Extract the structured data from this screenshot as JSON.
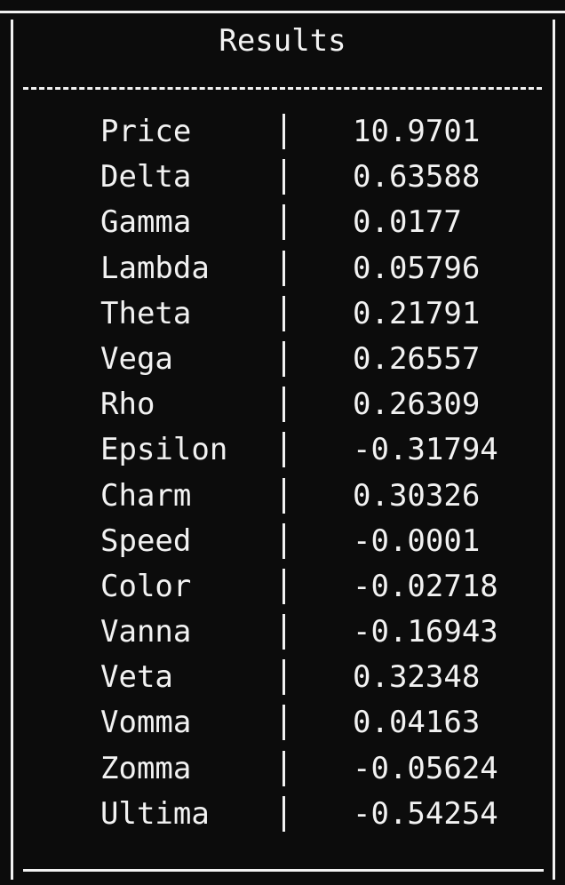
{
  "table": {
    "title": "Results",
    "rows": [
      {
        "label": "Price",
        "value": "10.9701"
      },
      {
        "label": "Delta",
        "value": "0.63588"
      },
      {
        "label": "Gamma",
        "value": "0.0177"
      },
      {
        "label": "Lambda",
        "value": "0.05796"
      },
      {
        "label": "Theta",
        "value": "0.21791"
      },
      {
        "label": "Vega",
        "value": "0.26557"
      },
      {
        "label": "Rho",
        "value": "0.26309"
      },
      {
        "label": "Epsilon",
        "value": "-0.31794"
      },
      {
        "label": "Charm",
        "value": "0.30326"
      },
      {
        "label": "Speed",
        "value": "-0.0001"
      },
      {
        "label": "Color",
        "value": "-0.02718"
      },
      {
        "label": "Vanna",
        "value": "-0.16943"
      },
      {
        "label": "Veta",
        "value": "0.32348"
      },
      {
        "label": "Vomma",
        "value": "0.04163"
      },
      {
        "label": "Zomma",
        "value": "-0.05624"
      },
      {
        "label": "Ultima",
        "value": "-0.54254"
      }
    ]
  },
  "colors": {
    "background": "#0c0c0c",
    "foreground": "#f2f2f2"
  }
}
